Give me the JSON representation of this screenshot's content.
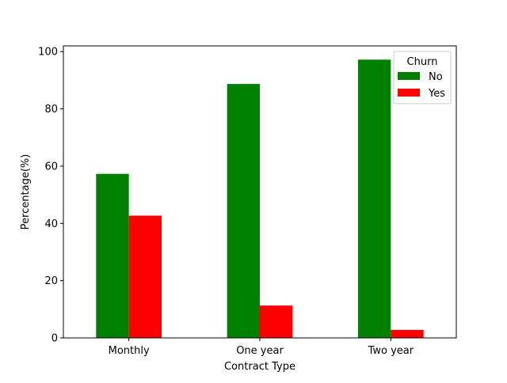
{
  "chart_data": {
    "type": "bar",
    "title": "",
    "xlabel": "Contract Type",
    "ylabel": "Percentage(%)",
    "categories": [
      "Monthly",
      "One year",
      "Two year"
    ],
    "series": [
      {
        "name": "No",
        "values": [
          57.3,
          88.7,
          97.2
        ],
        "color": "#008000"
      },
      {
        "name": "Yes",
        "values": [
          42.7,
          11.3,
          2.8
        ],
        "color": "#ff0000"
      }
    ],
    "ylim": [
      0,
      102
    ],
    "yticks": [
      0,
      20,
      40,
      60,
      80,
      100
    ],
    "grid": false,
    "legend": {
      "title": "Churn",
      "placement": "top-right"
    }
  }
}
